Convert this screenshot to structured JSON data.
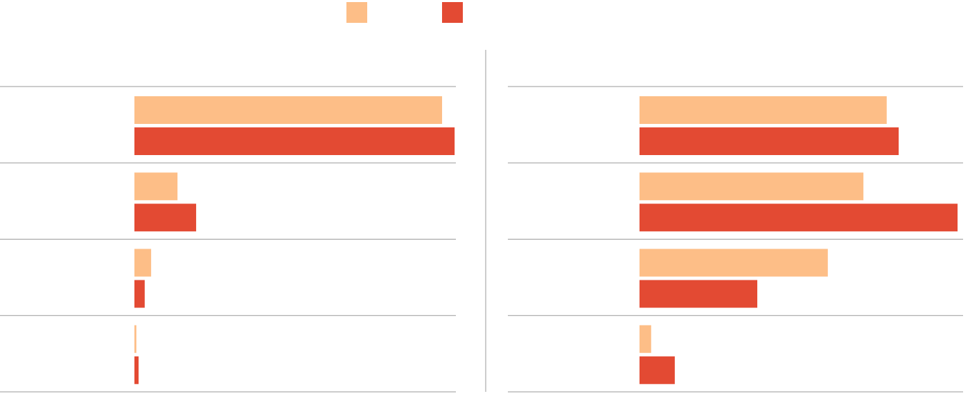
{
  "chart_data": [
    {
      "type": "bar",
      "orientation": "horizontal",
      "categories": [
        null,
        null,
        null,
        null
      ],
      "xlim": [
        0,
        100
      ],
      "series": [
        {
          "color": "#fdbe87",
          "values": [
            95.7,
            13.4,
            5.2,
            0.6
          ]
        },
        {
          "color": "#e34a33",
          "values": [
            99.6,
            19.2,
            3.2,
            1.3
          ]
        }
      ]
    },
    {
      "type": "bar",
      "orientation": "horizontal",
      "categories": [
        null,
        null,
        null,
        null
      ],
      "xlim": [
        0,
        100
      ],
      "series": [
        {
          "color": "#fdbe87",
          "values": [
            76.4,
            69.2,
            58.2,
            3.6
          ]
        },
        {
          "color": "#e34a33",
          "values": [
            80.1,
            98.3,
            36.4,
            10.9
          ]
        }
      ]
    }
  ]
}
